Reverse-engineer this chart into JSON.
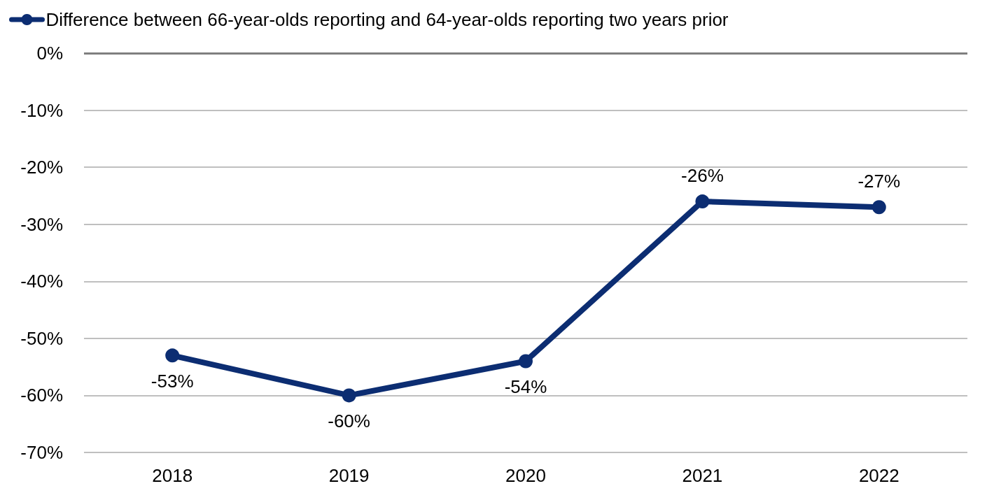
{
  "chart_data": {
    "type": "line",
    "categories": [
      "2018",
      "2019",
      "2020",
      "2021",
      "2022"
    ],
    "series": [
      {
        "name": "Difference between 66-year-olds reporting and 64-year-olds reporting two years prior",
        "color": "#0c2d72",
        "values": [
          -53,
          -60,
          -54,
          -26,
          -27
        ],
        "value_labels": [
          "-53%",
          "-60%",
          "-54%",
          "-26%",
          "-27%"
        ]
      }
    ],
    "ylim": [
      -70,
      0
    ],
    "yticks": [
      {
        "value": 0,
        "label": "0%"
      },
      {
        "value": -10,
        "label": "-10%"
      },
      {
        "value": -20,
        "label": "-20%"
      },
      {
        "value": -30,
        "label": "-30%"
      },
      {
        "value": -40,
        "label": "-40%"
      },
      {
        "value": -50,
        "label": "-50%"
      },
      {
        "value": -60,
        "label": "-60%"
      },
      {
        "value": -70,
        "label": "-70%"
      }
    ],
    "ref_lines": [
      {
        "axis": "y",
        "value": 0,
        "color": "#7f7f7f"
      }
    ],
    "grid": "y",
    "legend": "top left",
    "marker": "circle",
    "line_style": "solid"
  }
}
